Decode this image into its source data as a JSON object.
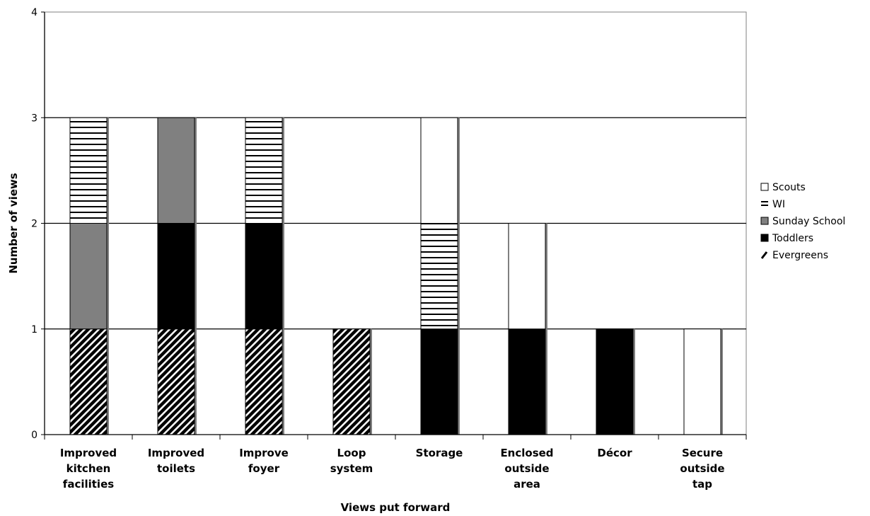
{
  "chart_data": {
    "type": "bar",
    "stacked": true,
    "categories": [
      "Improved kitchen facilities",
      "Improved toilets",
      "Improve foyer",
      "Loop system",
      "Storage",
      "Enclosed outside area",
      "Décor",
      "Secure outside tap"
    ],
    "category_lines": [
      [
        "Improved",
        "kitchen",
        "facilities"
      ],
      [
        "Improved",
        "toilets"
      ],
      [
        "Improve",
        "foyer"
      ],
      [
        "Loop",
        "system"
      ],
      [
        "Storage"
      ],
      [
        "Enclosed",
        "outside",
        "area"
      ],
      [
        "Décor"
      ],
      [
        "Secure",
        "outside",
        "tap"
      ]
    ],
    "series": [
      {
        "name": "Evergreens",
        "pattern": "diagonal",
        "values": [
          1,
          1,
          1,
          1,
          0,
          0,
          0,
          0
        ]
      },
      {
        "name": "Toddlers",
        "pattern": "solid-black",
        "values": [
          0,
          1,
          1,
          0,
          1,
          1,
          1,
          0
        ]
      },
      {
        "name": "Sunday School",
        "pattern": "solid-gray",
        "values": [
          1,
          1,
          0,
          0,
          0,
          0,
          0,
          0
        ]
      },
      {
        "name": "WI",
        "pattern": "horizontal",
        "values": [
          1,
          0,
          1,
          0,
          1,
          0,
          0,
          0
        ]
      },
      {
        "name": "Scouts",
        "pattern": "white",
        "values": [
          0,
          0,
          0,
          0,
          1,
          1,
          0,
          1
        ]
      }
    ],
    "legend_order": [
      "Scouts",
      "WI",
      "Sunday School",
      "Toddlers",
      "Evergreens"
    ],
    "legend_position": "right",
    "xlabel": "Views put forward",
    "ylabel": "Number of views",
    "ylim": [
      0,
      4
    ],
    "yticks": [
      0,
      1,
      2,
      3,
      4
    ],
    "grid": true,
    "colors": {
      "black": "#000000",
      "gray": "#808080",
      "white": "#ffffff"
    }
  }
}
